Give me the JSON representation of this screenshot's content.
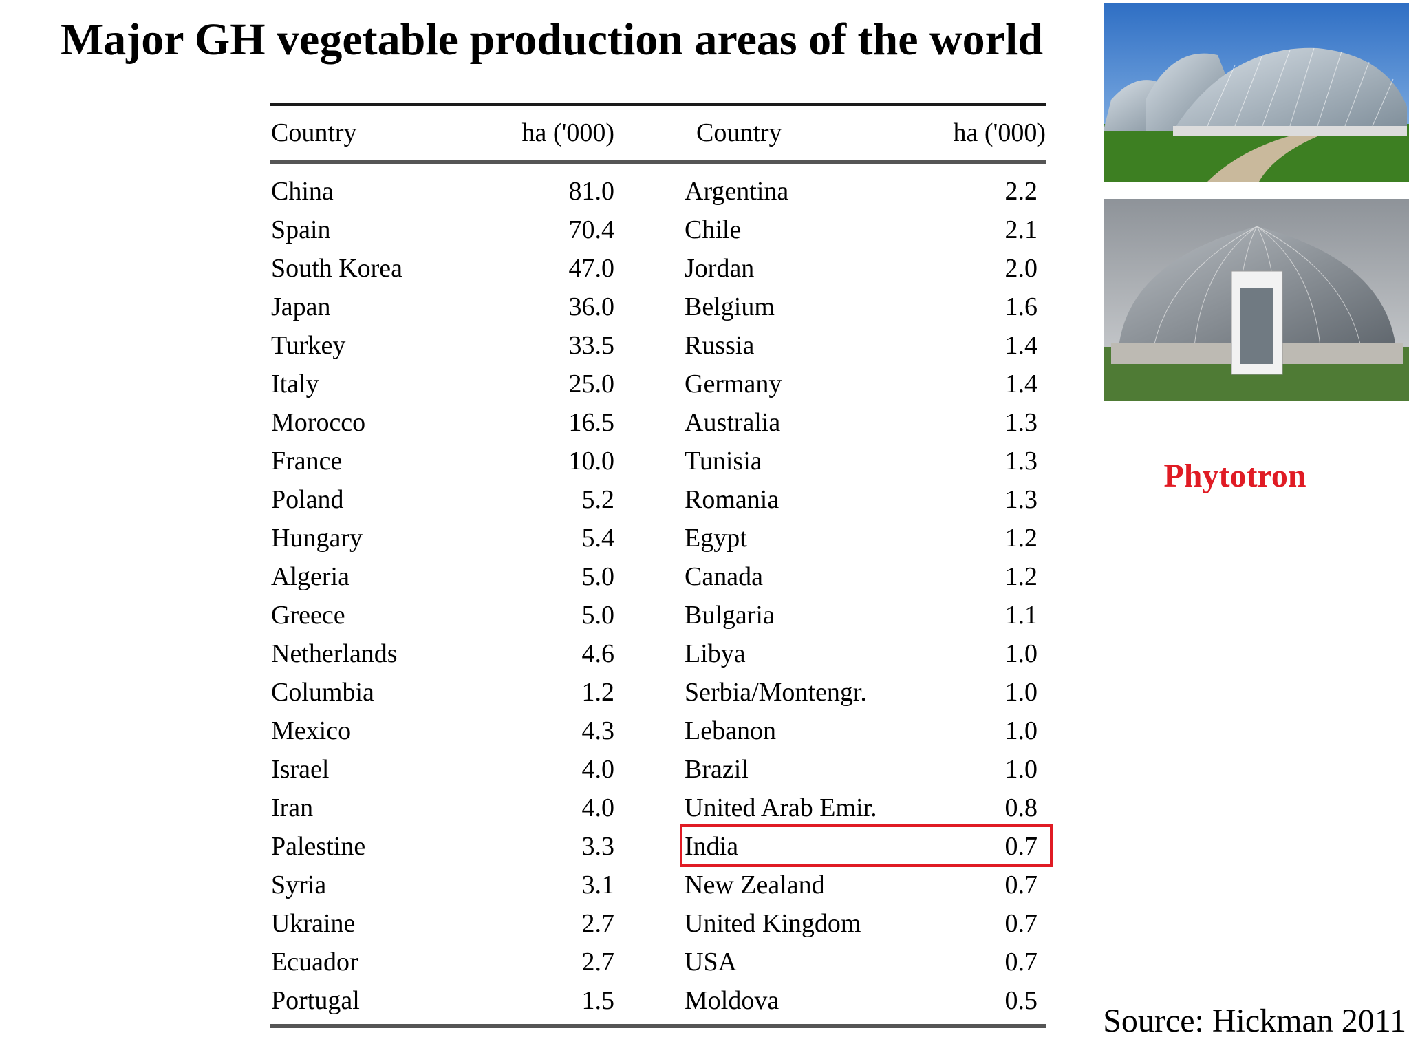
{
  "title": "Major GH vegetable production areas of the world",
  "table": {
    "headers": [
      "Country",
      "ha ('000)",
      "Country",
      "ha ('000)"
    ],
    "rows": [
      [
        "China",
        "81.0",
        "Argentina",
        "2.2"
      ],
      [
        "Spain",
        "70.4",
        "Chile",
        "2.1"
      ],
      [
        "South Korea",
        "47.0",
        "Jordan",
        "2.0"
      ],
      [
        "Japan",
        "36.0",
        "Belgium",
        "1.6"
      ],
      [
        "Turkey",
        "33.5",
        "Russia",
        "1.4"
      ],
      [
        "Italy",
        "25.0",
        "Germany",
        "1.4"
      ],
      [
        "Morocco",
        "16.5",
        "Australia",
        "1.3"
      ],
      [
        "France",
        "10.0",
        "Tunisia",
        "1.3"
      ],
      [
        "Poland",
        "5.2",
        "Romania",
        "1.3"
      ],
      [
        "Hungary",
        "5.4",
        "Egypt",
        "1.2"
      ],
      [
        "Algeria",
        "5.0",
        "Canada",
        "1.2"
      ],
      [
        "Greece",
        "5.0",
        "Bulgaria",
        "1.1"
      ],
      [
        "Netherlands",
        "4.6",
        "Libya",
        "1.0"
      ],
      [
        "Columbia",
        "1.2",
        "Serbia/Montengr.",
        "1.0"
      ],
      [
        "Mexico",
        "4.3",
        "Lebanon",
        "1.0"
      ],
      [
        "Israel",
        "4.0",
        "Brazil",
        "1.0"
      ],
      [
        "Iran",
        "4.0",
        "United Arab Emir.",
        "0.8"
      ],
      [
        "Palestine",
        "3.3",
        "India",
        "0.7"
      ],
      [
        "Syria",
        "3.1",
        "New Zealand",
        "0.7"
      ],
      [
        "Ukraine",
        "2.7",
        "United Kingdom",
        "0.7"
      ],
      [
        "Ecuador",
        "2.7",
        "USA",
        "0.7"
      ],
      [
        "Portugal",
        "1.5",
        "Moldova",
        "0.5"
      ]
    ],
    "highlighted_row": 17,
    "highlight_color": "#e01b24"
  },
  "photos": [
    "greenhouse-photo",
    "dome-greenhouse-photo"
  ],
  "side_label": "Phytotron",
  "side_label_color": "#e01b24",
  "source": "Source: Hickman 2011"
}
